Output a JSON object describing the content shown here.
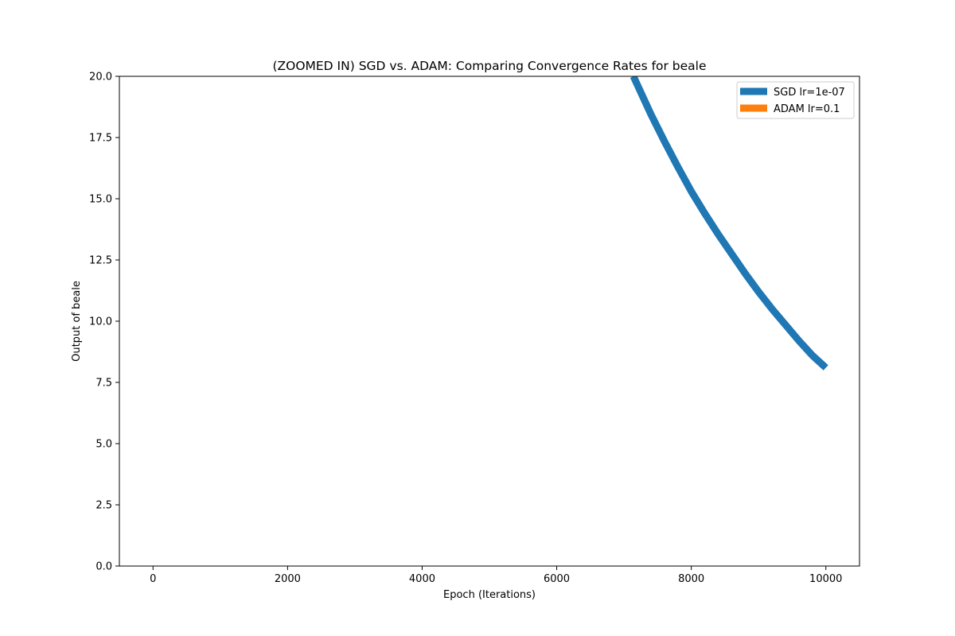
{
  "chart_data": {
    "type": "line",
    "title": "(ZOOMED IN) SGD vs. ADAM: Comparing Convergence Rates for beale",
    "xlabel": "Epoch (Iterations)",
    "ylabel": "Output of beale",
    "xlim": [
      -500,
      10500
    ],
    "ylim": [
      0,
      20
    ],
    "x_ticks": [
      0,
      2000,
      4000,
      6000,
      8000,
      10000
    ],
    "x_tick_labels": [
      "0",
      "2000",
      "4000",
      "6000",
      "8000",
      "10000"
    ],
    "y_ticks": [
      0,
      2.5,
      5,
      7.5,
      10,
      12.5,
      15,
      17.5,
      20
    ],
    "y_tick_labels": [
      "0.0",
      "2.5",
      "5.0",
      "7.5",
      "10.0",
      "12.5",
      "15.0",
      "17.5",
      "20.0"
    ],
    "grid": false,
    "legend_position": "top-right",
    "series": [
      {
        "name": "SGD lr=1e-07",
        "color": "#1f77b4",
        "x": [
          7140,
          7400,
          7600,
          7800,
          8000,
          8200,
          8400,
          8600,
          8800,
          9000,
          9200,
          9400,
          9600,
          9800,
          10000
        ],
        "values": [
          20.0,
          18.45,
          17.35,
          16.3,
          15.3,
          14.4,
          13.55,
          12.75,
          11.95,
          11.2,
          10.5,
          9.85,
          9.2,
          8.6,
          8.1
        ]
      },
      {
        "name": "ADAM lr=0.1",
        "color": "#ff7f0e",
        "x": [],
        "values": []
      }
    ]
  }
}
